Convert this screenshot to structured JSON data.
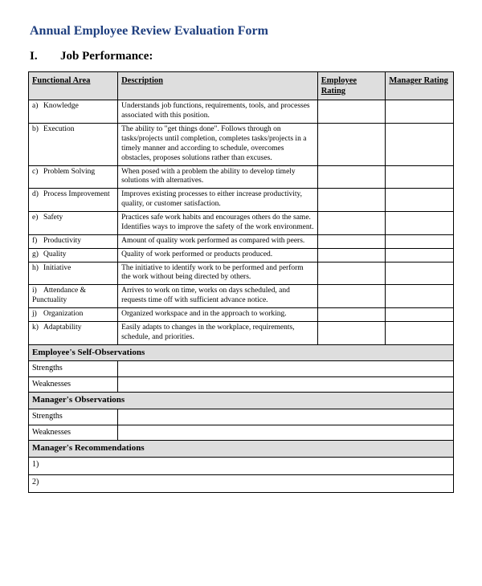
{
  "title": "Annual Employee Review Evaluation Form",
  "section": {
    "number": "I.",
    "heading": "Job Performance:"
  },
  "table": {
    "headers": {
      "area": "Functional Area",
      "desc": "Description",
      "emp": "Employee Rating",
      "mgr": "Manager Rating"
    },
    "rows": [
      {
        "letter": "a)",
        "label": "Knowledge",
        "desc": "Understands job functions, requirements, tools, and processes associated with this position."
      },
      {
        "letter": "b)",
        "label": "Execution",
        "desc": "The ability to \"get things done\". Follows through on tasks/projects until completion, completes tasks/projects in a timely manner and according to schedule, overcomes obstacles, proposes solutions rather than excuses."
      },
      {
        "letter": "c)",
        "label": "Problem Solving",
        "desc": "When posed with a problem the ability to develop timely solutions with alternatives."
      },
      {
        "letter": "d)",
        "label": "Process Improvement",
        "desc": "Improves existing processes to either increase productivity, quality, or customer satisfaction."
      },
      {
        "letter": "e)",
        "label": "Safety",
        "desc": "Practices safe work habits and encourages others do the same. Identifies ways to improve the safety of the work environment."
      },
      {
        "letter": "f)",
        "label": "Productivity",
        "desc": "Amount of quality work performed as compared with peers."
      },
      {
        "letter": "g)",
        "label": "Quality",
        "desc": "Quality of work performed or products produced."
      },
      {
        "letter": "h)",
        "label": "Initiative",
        "desc": "The initiative to identify work to be performed and perform the work without being directed by others."
      },
      {
        "letter": "i)",
        "label": "Attendance & Punctuality",
        "desc": "Arrives to work on time, works on days scheduled, and requests time off with sufficient advance notice."
      },
      {
        "letter": "j)",
        "label": "Organization",
        "desc": "Organized workspace and in the approach to working."
      },
      {
        "letter": "k)",
        "label": "Adaptability",
        "desc": "Easily adapts to changes in the workplace, requirements, schedule, and priorities."
      }
    ]
  },
  "selfObs": {
    "title": "Employee's Self-Observations",
    "strengths": "Strengths",
    "weaknesses": "Weaknesses"
  },
  "mgrObs": {
    "title": "Manager's Observations",
    "strengths": "Strengths",
    "weaknesses": "Weaknesses"
  },
  "mgrRec": {
    "title": "Manager's Recommendations",
    "r1": "1)",
    "r2": "2)"
  },
  "colors": {
    "header_bg": "#dedede",
    "title": "#1f3f7f",
    "border": "#000000",
    "bg": "#ffffff"
  }
}
